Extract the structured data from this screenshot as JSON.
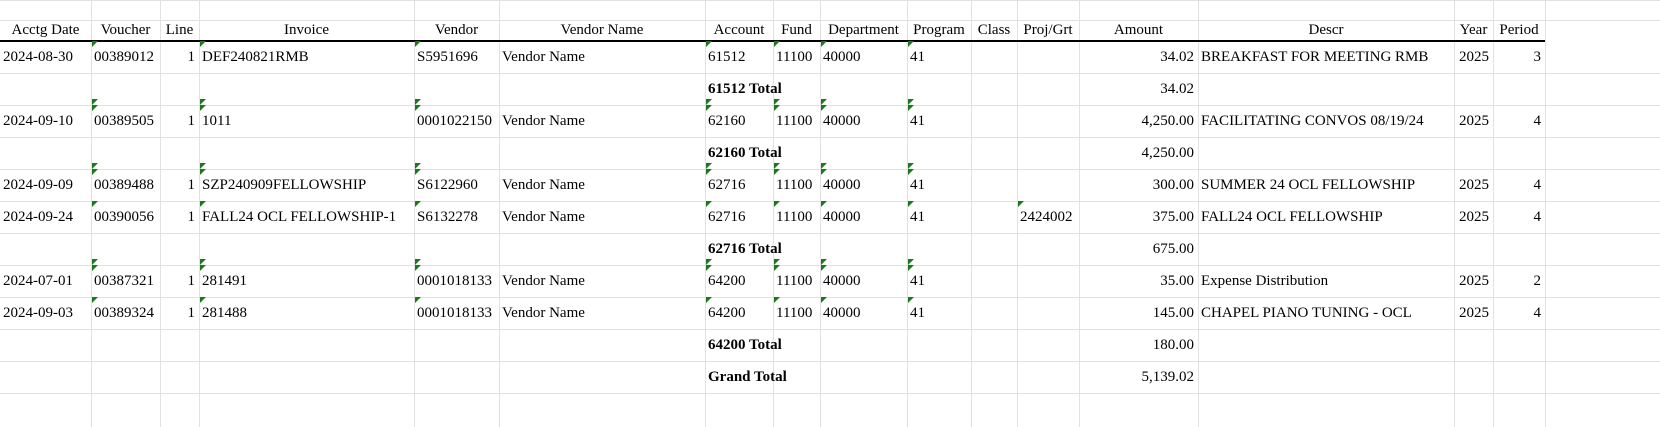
{
  "headers": [
    "Acctg Date",
    "Voucher",
    "Line",
    "Invoice",
    "Vendor",
    "Vendor Name",
    "Account",
    "Fund",
    "Department",
    "Program",
    "Class",
    "Proj/Grt",
    "Amount",
    "Descr",
    "Year",
    "Period"
  ],
  "rows": [
    {
      "type": "data",
      "acctg_date": "2024-08-30",
      "voucher": "00389012",
      "line": "1",
      "invoice": "DEF240821RMB",
      "vendor": "S5951696",
      "vendor_name": "Vendor Name",
      "account": "61512",
      "fund": "11100",
      "department": "40000",
      "program": "41",
      "class": "",
      "proj": "",
      "amount": "34.02",
      "descr": "BREAKFAST FOR MEETING RMB",
      "year": "2025",
      "period": "3"
    },
    {
      "type": "total",
      "label": "61512 Total",
      "amount": "34.02"
    },
    {
      "type": "data",
      "acctg_date": "2024-09-10",
      "voucher": "00389505",
      "line": "1",
      "invoice": "1011",
      "vendor": "0001022150",
      "vendor_name": "Vendor Name",
      "account": "62160",
      "fund": "11100",
      "department": "40000",
      "program": "41",
      "class": "",
      "proj": "",
      "amount": "4,250.00",
      "descr": "FACILITATING CONVOS 08/19/24",
      "year": "2025",
      "period": "4"
    },
    {
      "type": "total",
      "label": "62160 Total",
      "amount": "4,250.00"
    },
    {
      "type": "data",
      "acctg_date": "2024-09-09",
      "voucher": "00389488",
      "line": "1",
      "invoice": "SZP240909FELLOWSHIP",
      "vendor": "S6122960",
      "vendor_name": "Vendor Name",
      "account": "62716",
      "fund": "11100",
      "department": "40000",
      "program": "41",
      "class": "",
      "proj": "",
      "amount": "300.00",
      "descr": "SUMMER 24 OCL FELLOWSHIP",
      "year": "2025",
      "period": "4"
    },
    {
      "type": "data",
      "acctg_date": "2024-09-24",
      "voucher": "00390056",
      "line": "1",
      "invoice": "FALL24 OCL FELLOWSHIP-1",
      "vendor": "S6132278",
      "vendor_name": "Vendor Name",
      "account": "62716",
      "fund": "11100",
      "department": "40000",
      "program": "41",
      "class": "",
      "proj": "2424002",
      "amount": "375.00",
      "descr": "FALL24 OCL FELLOWSHIP",
      "year": "2025",
      "period": "4"
    },
    {
      "type": "total",
      "label": "62716 Total",
      "amount": "675.00"
    },
    {
      "type": "data",
      "acctg_date": "2024-07-01",
      "voucher": "00387321",
      "line": "1",
      "invoice": "281491",
      "vendor": "0001018133",
      "vendor_name": "Vendor Name",
      "account": "64200",
      "fund": "11100",
      "department": "40000",
      "program": "41",
      "class": "",
      "proj": "",
      "amount": "35.00",
      "descr": "Expense Distribution",
      "year": "2025",
      "period": "2"
    },
    {
      "type": "data",
      "acctg_date": "2024-09-03",
      "voucher": "00389324",
      "line": "1",
      "invoice": "281488",
      "vendor": "0001018133",
      "vendor_name": "Vendor Name",
      "account": "64200",
      "fund": "11100",
      "department": "40000",
      "program": "41",
      "class": "",
      "proj": "",
      "amount": "145.00",
      "descr": "CHAPEL PIANO TUNING - OCL",
      "year": "2025",
      "period": "4"
    },
    {
      "type": "total",
      "label": "64200 Total",
      "amount": "180.00"
    },
    {
      "type": "total",
      "label": "Grand Total",
      "amount": "5,139.02"
    }
  ],
  "colors": {
    "grid": "#e1e1e1",
    "error_flag": "#1a7a1a"
  }
}
